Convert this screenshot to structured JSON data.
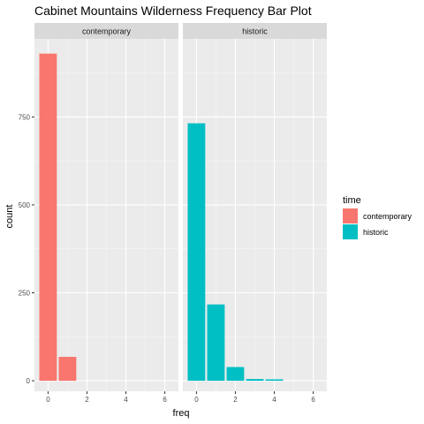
{
  "chart_data": {
    "type": "bar",
    "title": "Cabinet Mountains Wilderness Frequency Bar Plot",
    "xlabel": "freq",
    "ylabel": "count",
    "xlim": [
      -0.7,
      6.7
    ],
    "ylim": [
      -30,
      972
    ],
    "x_ticks": [
      0,
      2,
      4,
      6
    ],
    "y_ticks": [
      0,
      250,
      500,
      750
    ],
    "grid": true,
    "legend": {
      "title": "time",
      "placement": "right",
      "entries": [
        {
          "label": "contemporary",
          "color": "#F8766D"
        },
        {
          "label": "historic",
          "color": "#00BFC4"
        }
      ]
    },
    "facets": [
      {
        "label": "contemporary",
        "color": "#F8766D",
        "x": [
          0,
          1
        ],
        "values": [
          930,
          68
        ]
      },
      {
        "label": "historic",
        "color": "#00BFC4",
        "x": [
          0,
          1,
          2,
          3,
          4
        ],
        "values": [
          732,
          217,
          39,
          5,
          4
        ]
      }
    ]
  }
}
